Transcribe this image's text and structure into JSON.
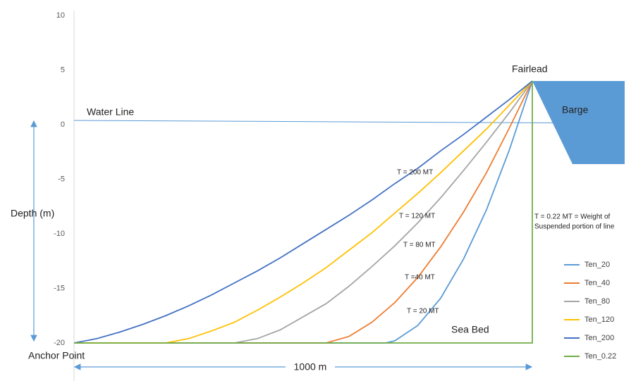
{
  "chart_data": {
    "type": "line",
    "ylim": [
      -20,
      10
    ],
    "yticks": [
      -20,
      -15,
      -10,
      -5,
      0,
      5,
      10
    ],
    "xlim": [
      0,
      1000
    ],
    "annotations": [
      "Water Line",
      "Barge",
      "Fairlead",
      "Anchor Point",
      "Sea Bed",
      "1000 m",
      "Depth (m)",
      "T = 200 MT",
      "T = 120 MT",
      "T = 80 MT",
      "T =40 MT",
      "T = 20 MT",
      "T = 0.22 MT = Weight of",
      "Suspended portion of line"
    ],
    "series": [
      {
        "name": "Ten_20",
        "color": "#5b9bd5",
        "x": [
          0,
          680,
          700,
          750,
          800,
          850,
          900,
          950,
          1000
        ],
        "values": [
          -20,
          -20,
          -19.8,
          -18.4,
          -15.9,
          -12.3,
          -7.8,
          -2.3,
          4
        ]
      },
      {
        "name": "Ten_40",
        "color": "#ed7d31",
        "x": [
          0,
          550,
          600,
          650,
          700,
          750,
          800,
          850,
          900,
          950,
          1000
        ],
        "values": [
          -20,
          -20,
          -19.4,
          -18.1,
          -16.3,
          -14,
          -11.2,
          -8,
          -4.4,
          -0.3,
          4
        ]
      },
      {
        "name": "Ten_80",
        "color": "#a5a5a5",
        "x": [
          0,
          350,
          400,
          450,
          500,
          550,
          600,
          650,
          700,
          750,
          800,
          850,
          900,
          950,
          1000
        ],
        "values": [
          -20,
          -20,
          -19.6,
          -18.8,
          -17.6,
          -16.4,
          -14.8,
          -13,
          -11.1,
          -9,
          -6.7,
          -4.2,
          -1.6,
          1.1,
          4
        ]
      },
      {
        "name": "Ten_120",
        "color": "#ffc000",
        "x": [
          0,
          200,
          250,
          300,
          350,
          400,
          450,
          500,
          550,
          600,
          650,
          700,
          750,
          800,
          850,
          900,
          950,
          1000
        ],
        "values": [
          -20,
          -20,
          -19.6,
          -18.9,
          -18.1,
          -17,
          -15.8,
          -14.5,
          -13.1,
          -11.5,
          -9.9,
          -8.1,
          -6.3,
          -4.4,
          -2.4,
          -0.4,
          1.8,
          4
        ]
      },
      {
        "name": "Ten_200",
        "color": "#4472c4",
        "x": [
          0,
          50,
          100,
          150,
          200,
          250,
          300,
          350,
          400,
          450,
          500,
          550,
          600,
          650,
          700,
          750,
          800,
          850,
          900,
          950,
          1000
        ],
        "values": [
          -20,
          -19.6,
          -19,
          -18.3,
          -17.5,
          -16.6,
          -15.6,
          -14.5,
          -13.4,
          -12.2,
          -10.9,
          -9.6,
          -8.3,
          -6.9,
          -5.4,
          -4,
          -2.4,
          -0.9,
          0.7,
          2.3,
          4
        ]
      },
      {
        "name": "Ten_0.22",
        "color": "#70ad47",
        "x": [
          0,
          1000,
          1000
        ],
        "values": [
          -20,
          -20,
          4
        ]
      }
    ]
  }
}
